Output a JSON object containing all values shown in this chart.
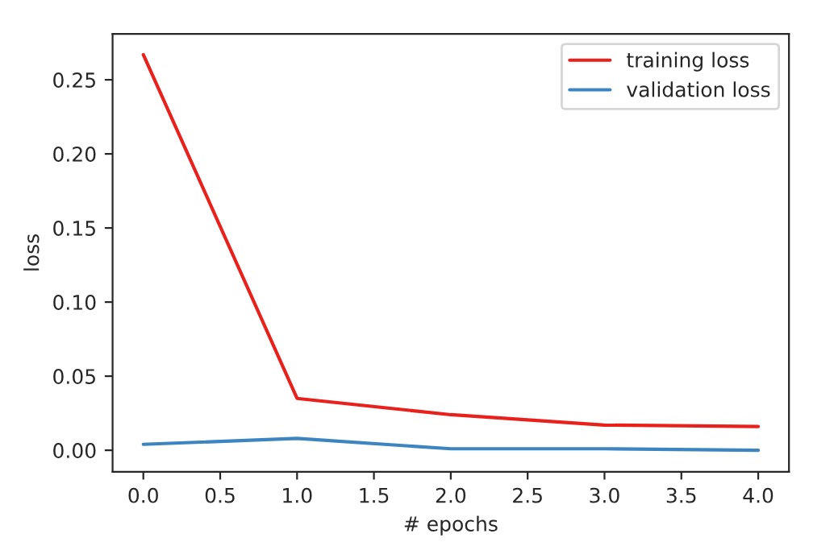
{
  "chart_data": {
    "type": "line",
    "xlabel": "# epochs",
    "ylabel": "loss",
    "x": [
      0,
      1,
      2,
      3,
      4
    ],
    "series": [
      {
        "name": "training loss",
        "color": "#e8211c",
        "values": [
          0.267,
          0.035,
          0.024,
          0.017,
          0.016
        ]
      },
      {
        "name": "validation loss",
        "color": "#3d85c0",
        "values": [
          0.004,
          0.008,
          0.001,
          0.001,
          0.0
        ]
      }
    ],
    "xlim": [
      -0.2,
      4.2
    ],
    "ylim": [
      -0.0145,
      0.281
    ],
    "xticks": [
      {
        "value": 0,
        "label": "0.0"
      },
      {
        "value": 0.5,
        "label": "0.5"
      },
      {
        "value": 1,
        "label": "1.0"
      },
      {
        "value": 1.5,
        "label": "1.5"
      },
      {
        "value": 2,
        "label": "2.0"
      },
      {
        "value": 2.5,
        "label": "2.5"
      },
      {
        "value": 3,
        "label": "3.0"
      },
      {
        "value": 3.5,
        "label": "3.5"
      },
      {
        "value": 4,
        "label": "4.0"
      }
    ],
    "yticks": [
      {
        "value": 0,
        "label": "0.00"
      },
      {
        "value": 0.05,
        "label": "0.05"
      },
      {
        "value": 0.1,
        "label": "0.10"
      },
      {
        "value": 0.15,
        "label": "0.15"
      },
      {
        "value": 0.2,
        "label": "0.20"
      },
      {
        "value": 0.25,
        "label": "0.25"
      }
    ],
    "grid": false,
    "legend": "top right",
    "marker": "none",
    "line_style": "solid"
  }
}
